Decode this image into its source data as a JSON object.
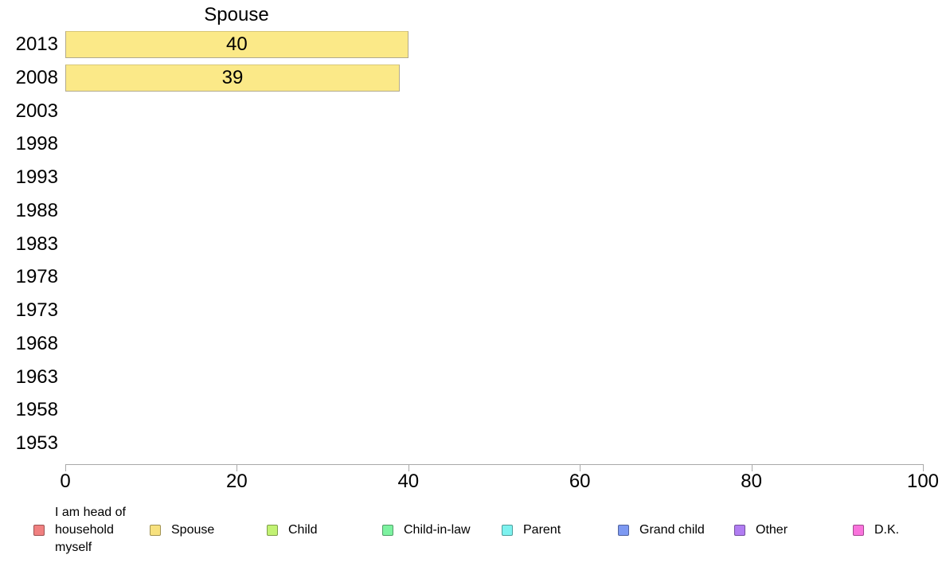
{
  "chart_data": {
    "type": "bar",
    "orientation": "horizontal",
    "title": "Spouse",
    "categories": [
      "2013",
      "2008",
      "2003",
      "1998",
      "1993",
      "1988",
      "1983",
      "1978",
      "1973",
      "1968",
      "1963",
      "1958",
      "1953"
    ],
    "values": [
      40,
      39,
      null,
      null,
      null,
      null,
      null,
      null,
      null,
      null,
      null,
      null,
      null
    ],
    "xlabel": "",
    "ylabel": "",
    "xlim": [
      0,
      100
    ],
    "x_ticks": [
      0,
      20,
      40,
      60,
      80,
      100
    ],
    "grid": false,
    "bar_fill_color": "#fbe988",
    "bar_border_color": "#b2aa8d",
    "axis_color": "#a9a9a9",
    "legend_position": "bottom",
    "legend": [
      {
        "label": "I am head of household myself",
        "color": "#f08080"
      },
      {
        "label": "Spouse",
        "color": "#f7e17e"
      },
      {
        "label": "Child",
        "color": "#c2f273"
      },
      {
        "label": "Child-in-law",
        "color": "#7df2a0"
      },
      {
        "label": "Parent",
        "color": "#7df2ef"
      },
      {
        "label": "Grand child",
        "color": "#7d99f2"
      },
      {
        "label": "Other",
        "color": "#b17df2"
      },
      {
        "label": "D.K.",
        "color": "#f973dc"
      }
    ]
  }
}
